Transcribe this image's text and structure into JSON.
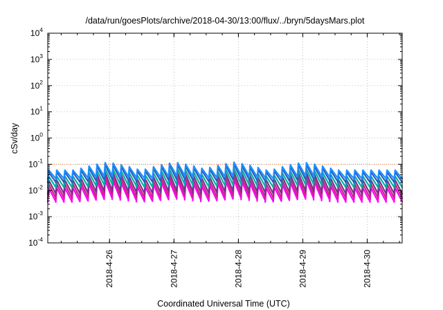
{
  "chart_data": {
    "type": "line",
    "title": "/data/run/goesPlots/archive/2018-04-30/13:00/flux/../bryn/5daysMars.plot",
    "xlabel": "Coordinated Universal Time (UTC)",
    "ylabel": "cSv/day",
    "y_scale": "log",
    "ylim": [
      0.0001,
      10000
    ],
    "xlim": [
      "2018-04-25 01:00",
      "2018-04-30 13:00"
    ],
    "y_ticks": [
      {
        "base": "10",
        "exp": "-4",
        "value": 0.0001
      },
      {
        "base": "10",
        "exp": "-3",
        "value": 0.001
      },
      {
        "base": "10",
        "exp": "-2",
        "value": 0.01
      },
      {
        "base": "10",
        "exp": "-1",
        "value": 0.1
      },
      {
        "base": "10",
        "exp": "0",
        "value": 1
      },
      {
        "base": "10",
        "exp": "1",
        "value": 10
      },
      {
        "base": "10",
        "exp": "2",
        "value": 100
      },
      {
        "base": "10",
        "exp": "3",
        "value": 1000
      },
      {
        "base": "10",
        "exp": "4",
        "value": 10000
      }
    ],
    "x_ticks": [
      {
        "label": "2018-4-26",
        "value": "2018-04-26 00:00"
      },
      {
        "label": "2018-4-27",
        "value": "2018-04-27 00:00"
      },
      {
        "label": "2018-4-28",
        "value": "2018-04-28 00:00"
      },
      {
        "label": "2018-4-29",
        "value": "2018-04-29 00:00"
      },
      {
        "label": "2018-4-30",
        "value": "2018-04-30 00:00"
      }
    ],
    "grid": true,
    "reference_line": {
      "value": 0.1,
      "color": "#e07030",
      "style": "dotted"
    },
    "series": [
      {
        "color": "#ff00ff",
        "peak": 0.025,
        "trough": 0.004
      },
      {
        "color": "#cc2288",
        "peak": 0.035,
        "trough": 0.0055
      },
      {
        "color": "#7b2f8c",
        "peak": 0.05,
        "trough": 0.008
      },
      {
        "color": "#00b0a0",
        "peak": 0.07,
        "trough": 0.014
      },
      {
        "color": "#2e5ab8",
        "peak": 0.1,
        "trough": 0.022
      },
      {
        "color": "#1e90ff",
        "peak": 0.12,
        "trough": 0.03
      }
    ],
    "oscillation_period_hours": 3,
    "day_peaks": [
      "2018-04-25 23:00",
      "2018-04-27 00:00",
      "2018-04-27 22:00",
      "2018-04-29 00:00"
    ]
  }
}
